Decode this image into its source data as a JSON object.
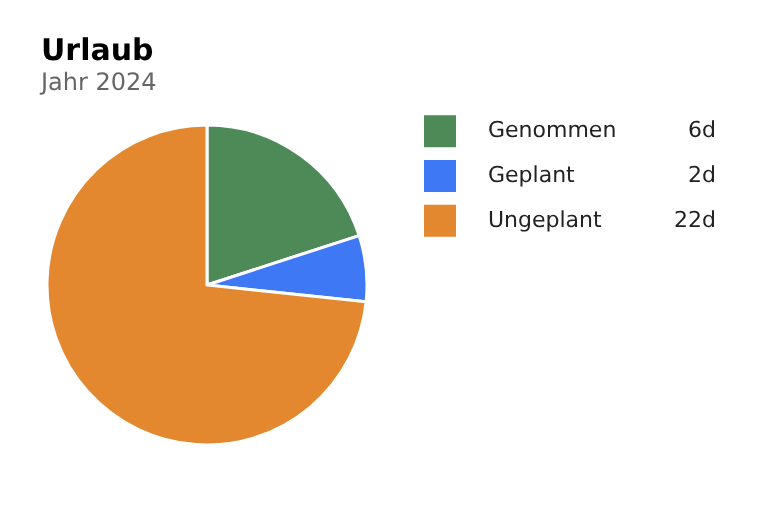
{
  "chart_data": {
    "type": "pie",
    "title": "Urlaub",
    "subtitle": "Jahr 2024",
    "categories": [
      "Genommen",
      "Geplant",
      "Ungeplant"
    ],
    "values": [
      6,
      2,
      22
    ],
    "value_labels": [
      "6d",
      "2d",
      "22d"
    ],
    "colors": [
      "#4d8a57",
      "#3f78f5",
      "#e3882e"
    ],
    "legend": "top right"
  }
}
